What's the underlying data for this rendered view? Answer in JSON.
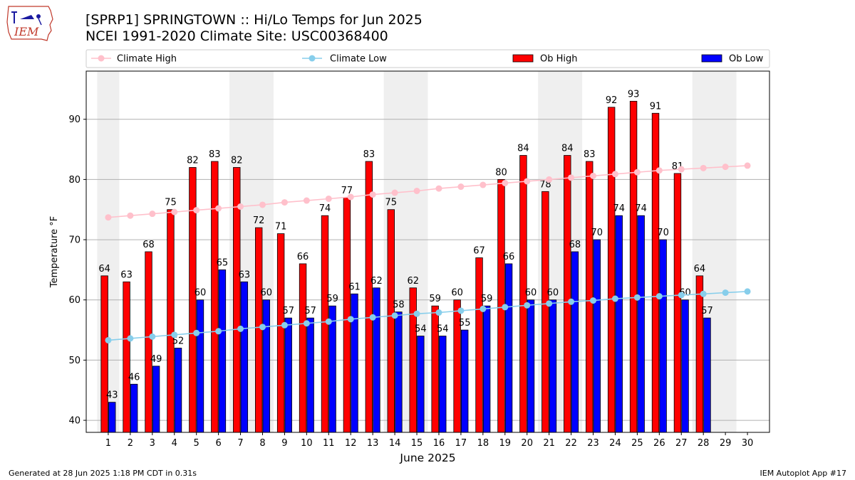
{
  "header": {
    "title_line1": "[SPRP1] SPRINGTOWN :: Hi/Lo Temps for Jun 2025",
    "title_line2": "NCEI 1991-2020 Climate Site: USC00368400",
    "logo_text": "IEM"
  },
  "footer": {
    "generated": "Generated at 28 Jun 2025 1:18 PM CDT in 0.31s",
    "app": "IEM Autoplot App #17"
  },
  "chart_data": {
    "type": "bar",
    "xlabel": "June 2025",
    "ylabel": "Temperature °F",
    "ylim": [
      38,
      98
    ],
    "yticks": [
      40,
      50,
      60,
      70,
      80,
      90
    ],
    "grid": "horizontal",
    "legend_position": "top",
    "x": [
      1,
      2,
      3,
      4,
      5,
      6,
      7,
      8,
      9,
      10,
      11,
      12,
      13,
      14,
      15,
      16,
      17,
      18,
      19,
      20,
      21,
      22,
      23,
      24,
      25,
      26,
      27,
      28,
      29,
      30
    ],
    "weekend_shading_days": [
      [
        1,
        1
      ],
      [
        7,
        8
      ],
      [
        14,
        15
      ],
      [
        21,
        22
      ],
      [
        28,
        29
      ]
    ],
    "series": [
      {
        "name": "Climate High",
        "kind": "line",
        "color": "#ffc0cb",
        "values": [
          73.7,
          74.0,
          74.3,
          74.6,
          74.9,
          75.2,
          75.5,
          75.8,
          76.2,
          76.5,
          76.8,
          77.1,
          77.5,
          77.8,
          78.1,
          78.5,
          78.8,
          79.1,
          79.4,
          79.7,
          80.0,
          80.3,
          80.6,
          80.9,
          81.2,
          81.5,
          81.7,
          81.9,
          82.1,
          82.3
        ]
      },
      {
        "name": "Climate Low",
        "kind": "line",
        "color": "#87ceeb",
        "values": [
          53.3,
          53.6,
          53.9,
          54.2,
          54.5,
          54.8,
          55.2,
          55.5,
          55.8,
          56.1,
          56.4,
          56.8,
          57.1,
          57.4,
          57.7,
          57.9,
          58.2,
          58.5,
          58.8,
          59.1,
          59.4,
          59.7,
          59.9,
          60.2,
          60.4,
          60.6,
          60.8,
          61.0,
          61.2,
          61.4
        ]
      },
      {
        "name": "Ob High",
        "kind": "bar",
        "color": "#ff0000",
        "values": [
          64,
          63,
          68,
          75,
          82,
          83,
          82,
          72,
          71,
          66,
          74,
          77,
          83,
          75,
          62,
          59,
          60,
          67,
          80,
          84,
          78,
          84,
          83,
          92,
          93,
          91,
          81,
          64,
          null,
          null
        ]
      },
      {
        "name": "Ob Low",
        "kind": "bar",
        "color": "#0000ff",
        "values": [
          43,
          46,
          49,
          52,
          60,
          65,
          63,
          60,
          57,
          57,
          59,
          61,
          62,
          58,
          54,
          54,
          55,
          59,
          66,
          60,
          60,
          68,
          70,
          74,
          74,
          70,
          60,
          57,
          null,
          null
        ]
      }
    ]
  }
}
